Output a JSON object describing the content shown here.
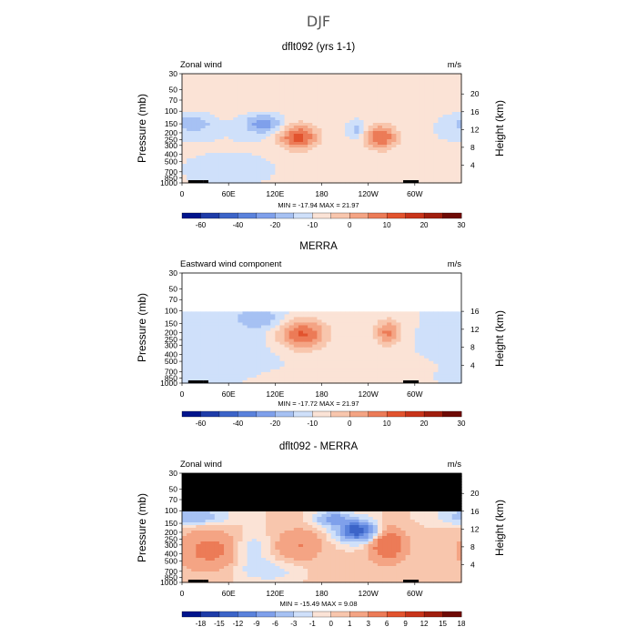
{
  "page": {
    "season": "DJF"
  },
  "colorbars": {
    "wind": {
      "colors": [
        "#00148c",
        "#1e3ca8",
        "#3c64c8",
        "#5a82dc",
        "#7fa0eb",
        "#a6c1f3",
        "#cfe0fa",
        "#fbe3d6",
        "#f8c6ad",
        "#f4a484",
        "#ec7b57",
        "#e2532e",
        "#c8341a",
        "#a01e0e",
        "#6e0a05"
      ],
      "labels": [
        "-60",
        "-40",
        "-20",
        "-10",
        "0",
        "10",
        "20",
        "30"
      ]
    },
    "diff": {
      "colors": [
        "#00148c",
        "#1e3ca8",
        "#3c64c8",
        "#5a82dc",
        "#7fa0eb",
        "#a6c1f3",
        "#cfe0fa",
        "#fbe3d6",
        "#f8c6ad",
        "#f4a484",
        "#ec7b57",
        "#e2532e",
        "#c8341a",
        "#a01e0e",
        "#6e0a05"
      ],
      "labels": [
        "-18",
        "-15",
        "-12",
        "-9",
        "-6",
        "-3",
        "-1",
        "0",
        "1",
        "3",
        "6",
        "9",
        "12",
        "15",
        "18"
      ]
    }
  },
  "chart_data": [
    {
      "type": "heatmap",
      "title": "dflt092 (yrs 1-1)",
      "left_label": "Zonal wind",
      "units": "m/s",
      "ylabel": "Pressure (mb)",
      "ylabel_right": "Height (km)",
      "pressure_ticks": [
        "30",
        "50",
        "70",
        "100",
        "150",
        "200",
        "250",
        "300",
        "400",
        "500",
        "700",
        "850",
        "1000"
      ],
      "height_ticks": [
        "20",
        "16",
        "12",
        "8",
        "4"
      ],
      "lon_ticks": [
        "0",
        "60E",
        "120E",
        "180",
        "120W",
        "60W"
      ],
      "stats": "MIN = -17.94   MAX =  21.97",
      "min": -17.94,
      "max": 21.97,
      "colorbar": "wind",
      "masked_above_mb": null,
      "sw": 1,
      "se": 0.6,
      "blobs": [
        {
          "lon": 150,
          "p": 230,
          "sx": 18,
          "sy": 0.28,
          "a": 22
        },
        {
          "lon": 257,
          "p": 230,
          "sx": 15,
          "sy": 0.28,
          "a": 20
        },
        {
          "lon": 105,
          "p": 150,
          "sx": 18,
          "sy": 0.22,
          "a": -14
        },
        {
          "lon": 15,
          "p": 150,
          "sx": 18,
          "sy": 0.2,
          "a": -10
        },
        {
          "lon": 225,
          "p": 180,
          "sx": 6,
          "sy": 0.18,
          "a": -8
        },
        {
          "lon": 60,
          "p": 700,
          "sx": 40,
          "sy": 0.3,
          "a": -3
        },
        {
          "lon": 120,
          "p": 70,
          "sx": 90,
          "sy": 0.5,
          "a": 3
        }
      ]
    },
    {
      "type": "heatmap",
      "title": "MERRA",
      "left_label": "Eastward wind component",
      "units": "m/s",
      "ylabel": "Pressure (mb)",
      "ylabel_right": "Height (km)",
      "pressure_ticks": [
        "30",
        "50",
        "70",
        "100",
        "150",
        "200",
        "250",
        "300",
        "400",
        "500",
        "700",
        "850",
        "1000"
      ],
      "height_ticks": [
        "16",
        "12",
        "8",
        "4"
      ],
      "lon_ticks": [
        "0",
        "60E",
        "120E",
        "180",
        "120W",
        "60W"
      ],
      "stats": "MIN = -17.72   MAX =  21.97",
      "min": -17.72,
      "max": 21.97,
      "colorbar": "wind",
      "masked_above_mb": 100,
      "blank_above": true,
      "sw": 1,
      "se": 0.6,
      "blobs": [
        {
          "lon": 155,
          "p": 210,
          "sx": 22,
          "sy": 0.35,
          "a": 21
        },
        {
          "lon": 265,
          "p": 200,
          "sx": 12,
          "sy": 0.3,
          "a": 16
        },
        {
          "lon": 100,
          "p": 130,
          "sx": 25,
          "sy": 0.25,
          "a": -9
        },
        {
          "lon": 60,
          "p": 400,
          "sx": 60,
          "sy": 0.5,
          "a": -2.5
        },
        {
          "lon": 20,
          "p": 850,
          "sx": 30,
          "sy": 0.2,
          "a": -4
        }
      ]
    },
    {
      "type": "heatmap",
      "title": "dflt092 - MERRA",
      "left_label": "Zonal wind",
      "units": "m/s",
      "ylabel": "Pressure (mb)",
      "ylabel_right": "Height (km)",
      "pressure_ticks": [
        "30",
        "50",
        "70",
        "100",
        "150",
        "200",
        "250",
        "300",
        "400",
        "500",
        "700",
        "850",
        "1000"
      ],
      "height_ticks": [
        "20",
        "16",
        "12",
        "8",
        "4"
      ],
      "lon_ticks": [
        "0",
        "60E",
        "120E",
        "180",
        "120W",
        "60W"
      ],
      "stats": "MIN = -15.49   MAX =   9.08",
      "min": -15.49,
      "max": 9.08,
      "colorbar": "diff",
      "masked_above_mb": 100,
      "blank_above": false,
      "sw": 0.3,
      "se": 0.3,
      "blobs": [
        {
          "lon": 225,
          "p": 190,
          "sx": 16,
          "sy": 0.22,
          "a": -15
        },
        {
          "lon": 195,
          "p": 130,
          "sx": 14,
          "sy": 0.15,
          "a": -8
        },
        {
          "lon": 15,
          "p": 120,
          "sx": 25,
          "sy": 0.15,
          "a": -6
        },
        {
          "lon": 265,
          "p": 300,
          "sx": 15,
          "sy": 0.35,
          "a": 6
        },
        {
          "lon": 35,
          "p": 350,
          "sx": 25,
          "sy": 0.4,
          "a": 4
        },
        {
          "lon": 150,
          "p": 300,
          "sx": 20,
          "sy": 0.35,
          "a": 3
        },
        {
          "lon": 90,
          "p": 350,
          "sx": 15,
          "sy": 0.35,
          "a": -2
        },
        {
          "lon": 110,
          "p": 700,
          "sx": 30,
          "sy": 0.25,
          "a": -2
        }
      ]
    }
  ]
}
